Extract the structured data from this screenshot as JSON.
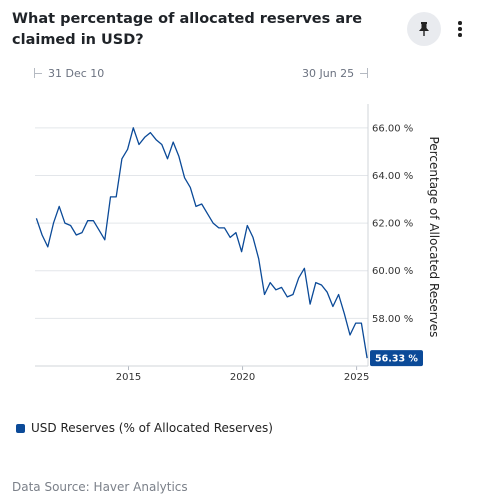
{
  "header": {
    "title": "What percentage of allocated reserves are claimed in USD?",
    "pin_icon": "pin-icon",
    "more_icon": "more-vertical-icon"
  },
  "range": {
    "start": "31 Dec 10",
    "end": "30 Jun 25"
  },
  "legend": {
    "label": "USD Reserves (% of Allocated Reserves)"
  },
  "source": "Data Source: Haver Analytics",
  "colors": {
    "series": "#0b4a98",
    "grid": "#e3e6ea",
    "end_label_bg": "#0b4a98"
  },
  "chart_data": {
    "type": "line",
    "title": "",
    "xlabel": "",
    "ylabel": "Percentage of Allocated Reserves",
    "y_axis_position": "right",
    "xlim": [
      2010.9,
      2025.5
    ],
    "ylim": [
      56.0,
      67.0
    ],
    "y_ticks": [
      58,
      60,
      62,
      64,
      66
    ],
    "y_tick_labels": [
      "58.00 %",
      "60.00 %",
      "62.00 %",
      "64.00 %",
      "66.00 %"
    ],
    "x_ticks": [
      2015,
      2020,
      2025
    ],
    "x_tick_labels": [
      "2015",
      "2020",
      "2025"
    ],
    "end_label": "56.33 %",
    "grid": "horizontal",
    "series": [
      {
        "name": "USD Reserves (% of Allocated Reserves)",
        "x": [
          2010.96,
          2011.21,
          2011.46,
          2011.71,
          2011.96,
          2012.21,
          2012.46,
          2012.71,
          2012.96,
          2013.21,
          2013.46,
          2013.71,
          2013.96,
          2014.21,
          2014.46,
          2014.71,
          2014.96,
          2015.21,
          2015.46,
          2015.71,
          2015.96,
          2016.21,
          2016.46,
          2016.71,
          2016.96,
          2017.21,
          2017.46,
          2017.71,
          2017.96,
          2018.21,
          2018.46,
          2018.71,
          2018.96,
          2019.21,
          2019.46,
          2019.71,
          2019.96,
          2020.21,
          2020.46,
          2020.71,
          2020.96,
          2021.21,
          2021.46,
          2021.71,
          2021.96,
          2022.21,
          2022.46,
          2022.71,
          2022.96,
          2023.21,
          2023.46,
          2023.71,
          2023.96,
          2024.21,
          2024.46,
          2024.71,
          2024.96,
          2025.21,
          2025.46
        ],
        "values": [
          62.2,
          61.5,
          61.0,
          62.0,
          62.7,
          62.0,
          61.9,
          61.5,
          61.6,
          62.1,
          62.1,
          61.7,
          61.3,
          63.1,
          63.1,
          64.7,
          65.1,
          66.0,
          65.3,
          65.6,
          65.8,
          65.5,
          65.3,
          64.7,
          65.4,
          64.8,
          63.9,
          63.5,
          62.7,
          62.8,
          62.4,
          62.0,
          61.8,
          61.8,
          61.4,
          61.6,
          60.8,
          61.9,
          61.4,
          60.5,
          59.0,
          59.5,
          59.2,
          59.3,
          58.9,
          59.0,
          59.7,
          60.1,
          58.6,
          59.5,
          59.4,
          59.1,
          58.5,
          59.0,
          58.2,
          57.3,
          57.8,
          57.8,
          56.33
        ]
      }
    ]
  }
}
